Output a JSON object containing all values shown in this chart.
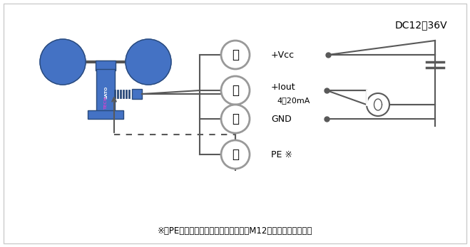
{
  "bg_color": "#ffffff",
  "border_color": "#cccccc",
  "title_text": "DC12～36V",
  "footnote": "※　PEは保護接地導体を表します。（M12端子と導通します）",
  "wire_labels": [
    "茶",
    "白",
    "青",
    "黒"
  ],
  "signal_labels": [
    "+Vcc",
    "+Iout",
    "GND",
    "PE ※"
  ],
  "extra_label": "4～20mA",
  "cup_color": "#4472c4",
  "body_color": "#4472c4",
  "connector_color": "#4472c4",
  "sato_color": "#7030a0",
  "line_color": "#595959",
  "circle_color": "#999999",
  "dot_color": "#595959"
}
